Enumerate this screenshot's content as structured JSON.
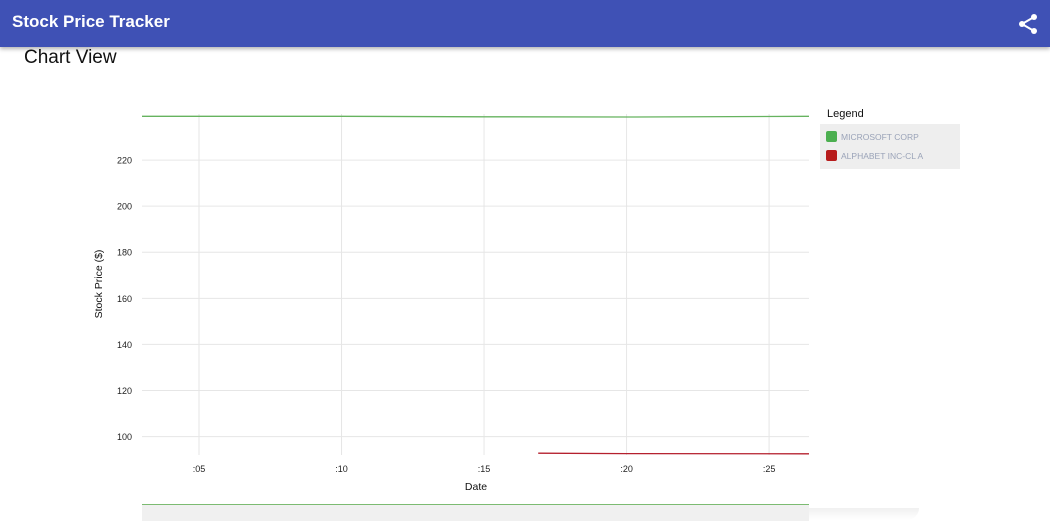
{
  "app": {
    "title": "Stock Price Tracker",
    "share_icon": "share-icon"
  },
  "section": {
    "title": "Chart View"
  },
  "colors": {
    "appbar": "#3f51b5",
    "series_msft": "#66b35f",
    "series_googl": "#b5202e",
    "grid": "#e3e3e3"
  },
  "legend": {
    "title": "Legend",
    "items": [
      {
        "label": "MICROSOFT CORP",
        "color": "#4caf50"
      },
      {
        "label": "ALPHABET INC-CL A",
        "color": "#b71c1c"
      }
    ]
  },
  "chart_data": {
    "type": "line",
    "xlabel": "Date",
    "ylabel": "Stock Price ($)",
    "x_ticks": [
      ":05",
      ":10",
      ":15",
      ":20",
      ":25"
    ],
    "x_tick_values": [
      5,
      10,
      15,
      20,
      25
    ],
    "xlim": [
      3,
      26.4
    ],
    "y_ticks": [
      100,
      120,
      140,
      160,
      180,
      200,
      220
    ],
    "ylim": [
      92,
      240
    ],
    "grid": true,
    "legend_position": "right",
    "series": [
      {
        "name": "MICROSOFT CORP",
        "color": "#66b35f",
        "points": [
          {
            "x": 3,
            "y": 239.0
          },
          {
            "x": 10,
            "y": 239.0
          },
          {
            "x": 15,
            "y": 238.8
          },
          {
            "x": 20,
            "y": 238.7
          },
          {
            "x": 26.4,
            "y": 239.0
          }
        ]
      },
      {
        "name": "ALPHABET INC-CL A",
        "color": "#b5202e",
        "points": [
          {
            "x": 16.9,
            "y": 92.8
          },
          {
            "x": 20,
            "y": 92.6
          },
          {
            "x": 26.4,
            "y": 92.5
          }
        ]
      }
    ]
  }
}
